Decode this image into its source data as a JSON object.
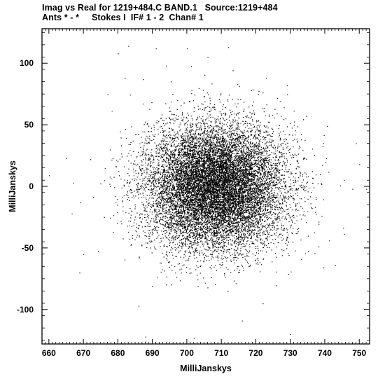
{
  "chart_data": {
    "type": "scatter",
    "title": "Imag vs Real for 1219+484.C BAND.1   Source:1219+484",
    "subtitle": "Ants * - *     Stokes I  IF# 1 - 2  Chan# 1",
    "xlabel": "MilliJanskys",
    "ylabel": "MilliJanskys",
    "xlim": [
      658,
      753
    ],
    "ylim": [
      -128,
      128
    ],
    "x_ticks": [
      660,
      670,
      680,
      690,
      700,
      710,
      720,
      730,
      740,
      750
    ],
    "y_ticks": [
      100,
      50,
      0,
      -50,
      -100
    ],
    "point_cloud": {
      "center": [
        708,
        0
      ],
      "approx_std": [
        10,
        25
      ],
      "approx_count": 14000
    },
    "points": [
      [
        660,
        9
      ],
      [
        665,
        23
      ],
      [
        667,
        3
      ],
      [
        669,
        -13
      ],
      [
        670,
        -55
      ],
      [
        672,
        22
      ],
      [
        676,
        5
      ],
      [
        677,
        75
      ],
      [
        678,
        127
      ],
      [
        680,
        108
      ],
      [
        682,
        88
      ],
      [
        683,
        114
      ],
      [
        686,
        -97
      ],
      [
        688,
        -122
      ],
      [
        688,
        -126
      ],
      [
        691,
        112
      ],
      [
        694,
        98
      ],
      [
        700,
        112
      ],
      [
        702,
        -123
      ],
      [
        706,
        105
      ],
      [
        712,
        113
      ],
      [
        716,
        -109
      ],
      [
        722,
        -95
      ],
      [
        729,
        82
      ],
      [
        730,
        -120
      ],
      [
        743,
        -64
      ],
      [
        748,
        -2
      ],
      [
        749,
        35
      ],
      [
        750,
        18
      ],
      [
        752,
        -2
      ]
    ],
    "marker_color": "#000000",
    "grid": false
  }
}
